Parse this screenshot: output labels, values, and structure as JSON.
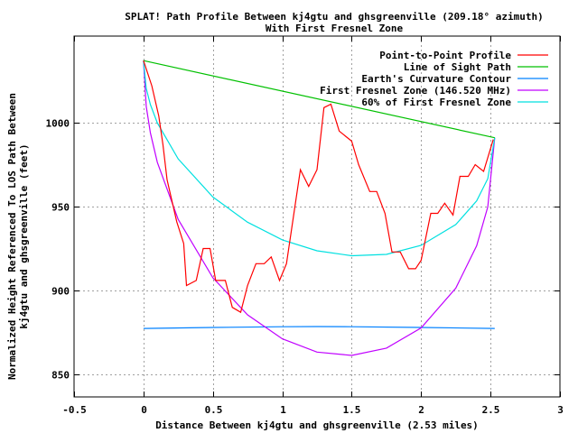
{
  "chart_data": {
    "type": "line",
    "title": "SPLAT! Path Profile Between kj4gtu and ghsgreenville (209.18° azimuth)",
    "subtitle": "With First Fresnel Zone",
    "xlabel": "Distance Between kj4gtu and ghsgreenville (2.53 miles)",
    "ylabel": [
      "Normalized Height Referenced To LOS Path Between",
      "kj4gtu and ghsgreenville (feet)"
    ],
    "xlim": [
      -0.5,
      3
    ],
    "ylim": [
      836.6,
      1051.6
    ],
    "xticks": [
      -0.5,
      0,
      0.5,
      1,
      1.5,
      2,
      2.5,
      3
    ],
    "xtick_labels": [
      "-0.5",
      "0",
      "0.5",
      "1",
      "1.5",
      "2",
      "2.5",
      "3"
    ],
    "yticks": [
      850,
      900,
      950,
      1000
    ],
    "ytick_labels": [
      "850",
      "900",
      "950",
      "1000"
    ],
    "grid": true,
    "legend_position": "top-right",
    "series": [
      {
        "name": "Point-to-Point Profile",
        "color": "#ff0000",
        "x": [
          0,
          0.06,
          0.11,
          0.14,
          0.17,
          0.24,
          0.29,
          0.31,
          0.38,
          0.43,
          0.48,
          0.52,
          0.59,
          0.64,
          0.7,
          0.75,
          0.81,
          0.87,
          0.92,
          0.98,
          1.03,
          1.13,
          1.19,
          1.25,
          1.3,
          1.35,
          1.41,
          1.5,
          1.55,
          1.63,
          1.68,
          1.74,
          1.79,
          1.85,
          1.91,
          1.96,
          2.0,
          2.07,
          2.12,
          2.17,
          2.23,
          2.28,
          2.34,
          2.39,
          2.45,
          2.52
        ],
        "y": [
          1037,
          1022,
          1004,
          987,
          966,
          941,
          928,
          903,
          906,
          925,
          925,
          906,
          906,
          890,
          887,
          903,
          916,
          916,
          920,
          906,
          916,
          972,
          962,
          972,
          1009,
          1011,
          995,
          989,
          975,
          959,
          959,
          946,
          923,
          923,
          913,
          913,
          918,
          946,
          946,
          952,
          945,
          968,
          968,
          975,
          971,
          990
        ]
      },
      {
        "name": "Line of Sight Path",
        "color": "#00c000",
        "x": [
          0,
          2.53
        ],
        "y": [
          1037,
          991
        ]
      },
      {
        "name": "Earth's Curvature Contour",
        "color": "#0080ff",
        "x": [
          0,
          0.5,
          1.0,
          1.25,
          1.5,
          2.0,
          2.53
        ],
        "y": [
          877.4,
          878.0,
          878.4,
          878.5,
          878.4,
          878.0,
          877.4
        ]
      },
      {
        "name": "First Fresnel Zone (146.520 MHz)",
        "color": "#c000ff",
        "x": [
          0,
          0.02,
          0.05,
          0.1,
          0.25,
          0.5,
          0.75,
          1.0,
          1.25,
          1.5,
          1.75,
          2.0,
          2.25,
          2.4,
          2.48,
          2.53
        ],
        "y": [
          1037,
          1009.8,
          994.0,
          976.4,
          942.4,
          907.6,
          885.5,
          871.2,
          863.3,
          861.3,
          865.7,
          877.7,
          901.4,
          926.7,
          949.8,
          991
        ]
      },
      {
        "name": "60% of First Fresnel Zone",
        "color": "#00e0e0",
        "x": [
          0,
          0.02,
          0.05,
          0.1,
          0.25,
          0.5,
          0.75,
          1.0,
          1.25,
          1.5,
          1.75,
          2.0,
          2.25,
          2.4,
          2.48,
          2.53
        ],
        "y": [
          1037,
          1020.5,
          1010.8,
          999.9,
          978.4,
          955.7,
          940.7,
          930.2,
          923.7,
          920.7,
          921.5,
          926.9,
          939.3,
          953.4,
          966.6,
          991
        ]
      }
    ]
  }
}
